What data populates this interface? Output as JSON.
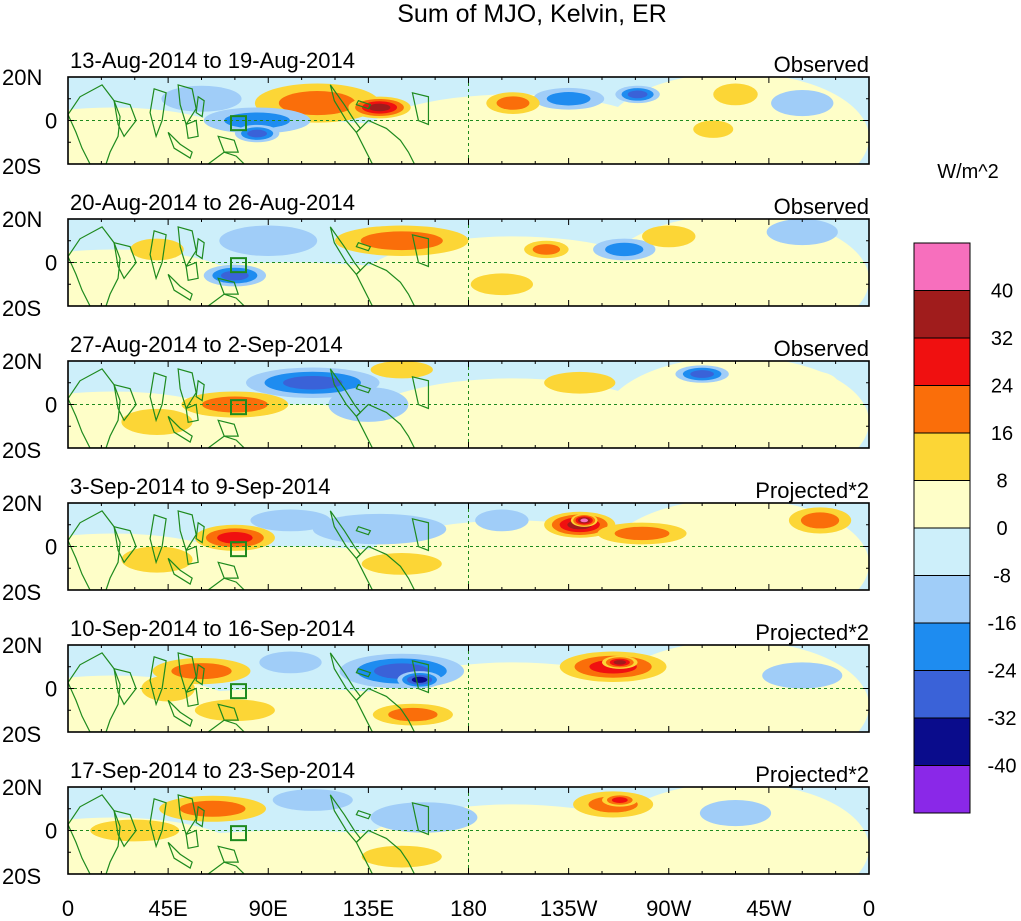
{
  "title": "Sum of MJO, Kelvin, ER",
  "colorbar": {
    "unit": "W/m^2",
    "levels": [
      "40",
      "32",
      "24",
      "16",
      "8",
      "0",
      "-8",
      "-16",
      "-24",
      "-32",
      "-40"
    ],
    "colors": [
      "#f76fbd",
      "#a01c1c",
      "#f01010",
      "#fa6e0a",
      "#fcd636",
      "#fefec8",
      "#cdeffa",
      "#a0cdf8",
      "#1e8cf0",
      "#3a62d8",
      "#0a0c8c",
      "#8a28e8"
    ]
  },
  "map": {
    "lat_labels": [
      "20N",
      "0",
      "20S"
    ],
    "lon_labels": [
      "0",
      "45E",
      "90E",
      "135E",
      "180",
      "135W",
      "90W",
      "45W",
      "0"
    ],
    "land_color": "#1e8a1e"
  },
  "panels": [
    {
      "date_range": "13-Aug-2014 to 19-Aug-2014",
      "status": "Observed",
      "anomalies": [
        {
          "lon": 112,
          "lat": 8,
          "rx": 28,
          "ry": 9,
          "v": 20
        },
        {
          "lon": 140,
          "lat": 6,
          "rx": 14,
          "ry": 5,
          "v": 36
        },
        {
          "lon": 85,
          "lat": 0,
          "rx": 24,
          "ry": 6,
          "v": -20
        },
        {
          "lon": 85,
          "lat": -6,
          "rx": 10,
          "ry": 4,
          "v": -26
        },
        {
          "lon": 225,
          "lat": 10,
          "rx": 16,
          "ry": 5,
          "v": -22
        },
        {
          "lon": 256,
          "lat": 12,
          "rx": 10,
          "ry": 4,
          "v": -30
        },
        {
          "lon": 200,
          "lat": 8,
          "rx": 12,
          "ry": 5,
          "v": 22
        },
        {
          "lon": 290,
          "lat": -4,
          "rx": 9,
          "ry": 4,
          "v": 14
        },
        {
          "lon": 60,
          "lat": 10,
          "rx": 18,
          "ry": 6,
          "v": -10
        },
        {
          "lon": 300,
          "lat": 12,
          "rx": 10,
          "ry": 5,
          "v": 14
        },
        {
          "lon": 330,
          "lat": 8,
          "rx": 14,
          "ry": 6,
          "v": -12
        },
        {
          "lon": 150,
          "lat": -10,
          "rx": 14,
          "ry": 5,
          "v": 6
        }
      ]
    },
    {
      "date_range": "20-Aug-2014 to 26-Aug-2014",
      "status": "Observed",
      "anomalies": [
        {
          "lon": 150,
          "lat": 10,
          "rx": 30,
          "ry": 7,
          "v": 18
        },
        {
          "lon": 215,
          "lat": 6,
          "rx": 10,
          "ry": 4,
          "v": 16
        },
        {
          "lon": 75,
          "lat": -6,
          "rx": 14,
          "ry": 5,
          "v": -24
        },
        {
          "lon": 90,
          "lat": 10,
          "rx": 22,
          "ry": 7,
          "v": -14
        },
        {
          "lon": 250,
          "lat": 6,
          "rx": 14,
          "ry": 5,
          "v": -20
        },
        {
          "lon": 270,
          "lat": 12,
          "rx": 12,
          "ry": 5,
          "v": 14
        },
        {
          "lon": 195,
          "lat": -10,
          "rx": 14,
          "ry": 5,
          "v": 10
        },
        {
          "lon": 330,
          "lat": 14,
          "rx": 16,
          "ry": 6,
          "v": -12
        },
        {
          "lon": 40,
          "lat": 6,
          "rx": 12,
          "ry": 5,
          "v": 8
        }
      ]
    },
    {
      "date_range": "27-Aug-2014 to 2-Sep-2014",
      "status": "Observed",
      "anomalies": [
        {
          "lon": 75,
          "lat": 0,
          "rx": 24,
          "ry": 6,
          "v": 20
        },
        {
          "lon": 110,
          "lat": 10,
          "rx": 30,
          "ry": 7,
          "v": -24
        },
        {
          "lon": 135,
          "lat": 0,
          "rx": 18,
          "ry": 8,
          "v": -14
        },
        {
          "lon": 285,
          "lat": 14,
          "rx": 12,
          "ry": 4,
          "v": -30
        },
        {
          "lon": 230,
          "lat": 10,
          "rx": 16,
          "ry": 5,
          "v": 10
        },
        {
          "lon": 150,
          "lat": 16,
          "rx": 14,
          "ry": 4,
          "v": 14
        },
        {
          "lon": 40,
          "lat": -8,
          "rx": 16,
          "ry": 6,
          "v": 8
        },
        {
          "lon": 330,
          "lat": 10,
          "rx": 16,
          "ry": 6,
          "v": 6
        }
      ]
    },
    {
      "date_range": "3-Sep-2014 to 9-Sep-2014",
      "status": "Projected*2",
      "anomalies": [
        {
          "lon": 75,
          "lat": 4,
          "rx": 18,
          "ry": 6,
          "v": 24
        },
        {
          "lon": 230,
          "lat": 10,
          "rx": 16,
          "ry": 6,
          "v": 32
        },
        {
          "lon": 232,
          "lat": 12,
          "rx": 6,
          "ry": 3,
          "v": 45
        },
        {
          "lon": 258,
          "lat": 6,
          "rx": 20,
          "ry": 5,
          "v": 18
        },
        {
          "lon": 338,
          "lat": 12,
          "rx": 14,
          "ry": 6,
          "v": 22
        },
        {
          "lon": 140,
          "lat": 8,
          "rx": 30,
          "ry": 7,
          "v": -14
        },
        {
          "lon": 100,
          "lat": 12,
          "rx": 18,
          "ry": 5,
          "v": -12
        },
        {
          "lon": 150,
          "lat": -8,
          "rx": 18,
          "ry": 5,
          "v": 10
        },
        {
          "lon": 40,
          "lat": -6,
          "rx": 16,
          "ry": 6,
          "v": 10
        },
        {
          "lon": 195,
          "lat": 12,
          "rx": 12,
          "ry": 5,
          "v": -10
        }
      ]
    },
    {
      "date_range": "10-Sep-2014 to 16-Sep-2014",
      "status": "Projected*2",
      "anomalies": [
        {
          "lon": 245,
          "lat": 10,
          "rx": 24,
          "ry": 7,
          "v": 26
        },
        {
          "lon": 248,
          "lat": 12,
          "rx": 8,
          "ry": 3,
          "v": 36
        },
        {
          "lon": 150,
          "lat": 8,
          "rx": 28,
          "ry": 8,
          "v": -24
        },
        {
          "lon": 158,
          "lat": 4,
          "rx": 10,
          "ry": 4,
          "v": -34
        },
        {
          "lon": 155,
          "lat": -12,
          "rx": 18,
          "ry": 5,
          "v": 16
        },
        {
          "lon": 60,
          "lat": 8,
          "rx": 22,
          "ry": 6,
          "v": 16
        },
        {
          "lon": 75,
          "lat": -10,
          "rx": 18,
          "ry": 5,
          "v": 10
        },
        {
          "lon": 45,
          "lat": 0,
          "rx": 12,
          "ry": 6,
          "v": 8
        },
        {
          "lon": 330,
          "lat": 6,
          "rx": 18,
          "ry": 6,
          "v": -10
        },
        {
          "lon": 100,
          "lat": 12,
          "rx": 14,
          "ry": 5,
          "v": -10
        }
      ]
    },
    {
      "date_range": "17-Sep-2014 to 23-Sep-2014",
      "status": "Projected*2",
      "anomalies": [
        {
          "lon": 65,
          "lat": 10,
          "rx": 24,
          "ry": 6,
          "v": 18
        },
        {
          "lon": 245,
          "lat": 12,
          "rx": 18,
          "ry": 6,
          "v": 20
        },
        {
          "lon": 248,
          "lat": 14,
          "rx": 8,
          "ry": 3,
          "v": 28
        },
        {
          "lon": 150,
          "lat": -12,
          "rx": 18,
          "ry": 5,
          "v": 14
        },
        {
          "lon": 160,
          "lat": 6,
          "rx": 24,
          "ry": 7,
          "v": -12
        },
        {
          "lon": 110,
          "lat": 14,
          "rx": 18,
          "ry": 5,
          "v": -12
        },
        {
          "lon": 30,
          "lat": 0,
          "rx": 20,
          "ry": 5,
          "v": 8
        },
        {
          "lon": 300,
          "lat": 8,
          "rx": 16,
          "ry": 6,
          "v": -10
        }
      ]
    }
  ]
}
